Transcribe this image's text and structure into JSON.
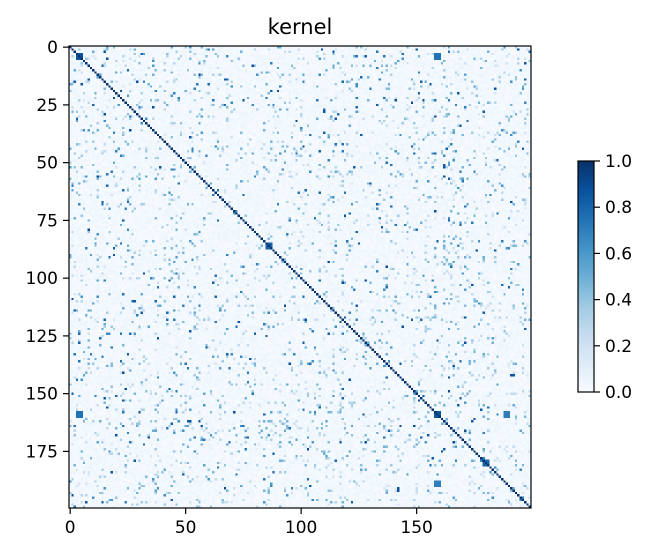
{
  "chart_data": {
    "type": "heatmap",
    "title": "kernel",
    "xlabel": "",
    "ylabel": "",
    "n_rows": 200,
    "n_cols": 200,
    "x_ticks": [
      0,
      50,
      100,
      150
    ],
    "x_tick_labels": [
      "0",
      "50",
      "100",
      "150"
    ],
    "y_ticks": [
      0,
      25,
      50,
      75,
      100,
      125,
      150,
      175
    ],
    "y_tick_labels": [
      "0",
      "25",
      "50",
      "75",
      "100",
      "125",
      "150",
      "175"
    ],
    "value_range": [
      0.0,
      1.0
    ],
    "diagonal_value": 1.0,
    "colormap": "Blues",
    "colormap_stops": [
      "#f7fbff",
      "#deebf7",
      "#c6dbef",
      "#9ecae1",
      "#6baed6",
      "#4292c6",
      "#2171b5",
      "#08519c",
      "#08306b"
    ],
    "colorbar": {
      "ticks": [
        0.0,
        0.2,
        0.4,
        0.6,
        0.8,
        1.0
      ],
      "tick_labels": [
        "0.0",
        "0.2",
        "0.4",
        "0.6",
        "0.8",
        "1.0"
      ]
    },
    "highlight_blocks": [
      {
        "row": 4,
        "col": 4,
        "value": 0.85
      },
      {
        "row": 86,
        "col": 86,
        "value": 0.8
      },
      {
        "row": 159,
        "col": 159,
        "value": 0.85
      },
      {
        "row": 159,
        "col": 4,
        "value": 0.75
      },
      {
        "row": 4,
        "col": 159,
        "value": 0.75
      },
      {
        "row": 180,
        "col": 180,
        "value": 0.8
      },
      {
        "row": 189,
        "col": 159,
        "value": 0.7
      },
      {
        "row": 159,
        "col": 189,
        "value": 0.7
      }
    ],
    "axis_color": "#000000"
  }
}
